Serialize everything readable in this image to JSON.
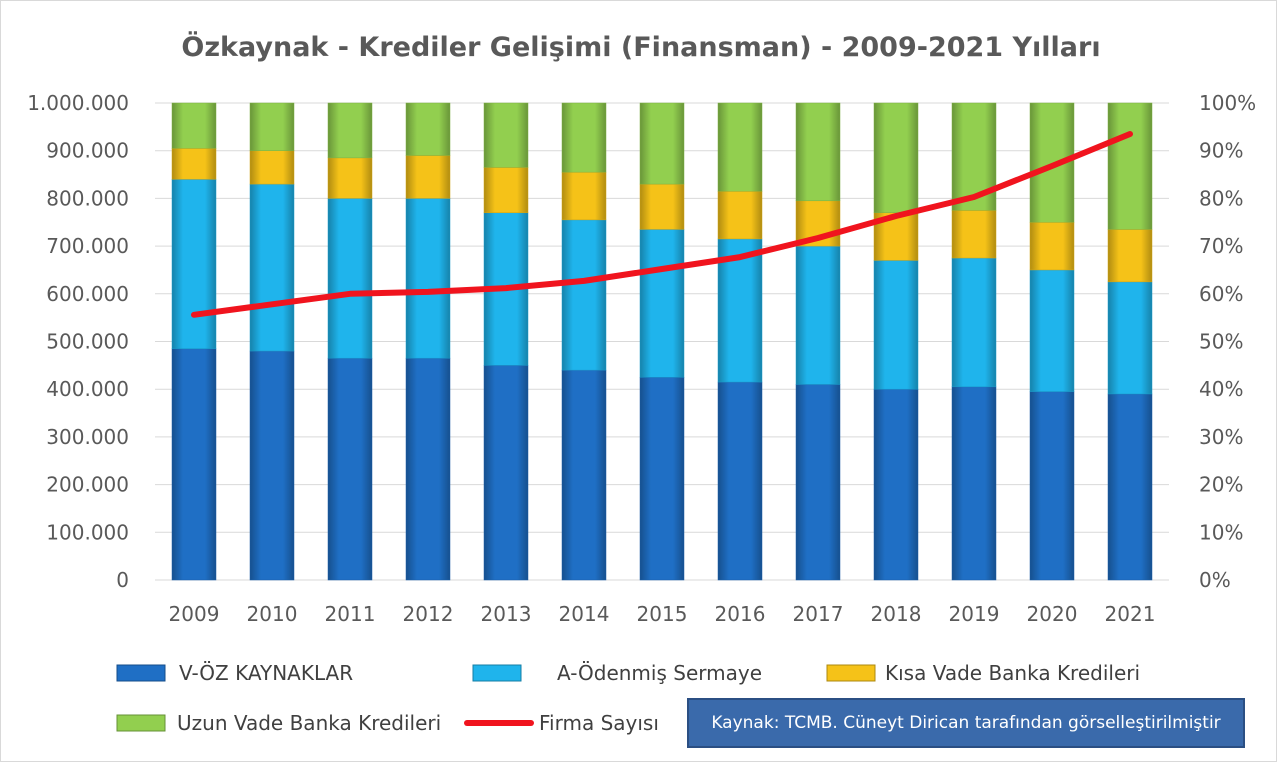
{
  "chart_data": {
    "type": "bar",
    "stacked": true,
    "title": "Özkaynak - Krediler Gelişimi (Finansman)  - 2009-2021 Yılları",
    "categories": [
      "2009",
      "2010",
      "2011",
      "2012",
      "2013",
      "2014",
      "2015",
      "2016",
      "2017",
      "2018",
      "2019",
      "2020",
      "2021"
    ],
    "y_left": {
      "range": [
        0,
        1000000
      ],
      "ticks": [
        "0",
        "100.000",
        "200.000",
        "300.000",
        "400.000",
        "500.000",
        "600.000",
        "700.000",
        "800.000",
        "900.000",
        "1.000.000"
      ]
    },
    "y_right": {
      "range": [
        0,
        100
      ],
      "unit": "%",
      "ticks": [
        "0%",
        "10%",
        "20%",
        "30%",
        "40%",
        "50%",
        "60%",
        "70%",
        "80%",
        "90%",
        "100%"
      ]
    },
    "grid": true,
    "legend_position": "bottom",
    "series": [
      {
        "name": "V-ÖZ KAYNAKLAR",
        "kind": "bar",
        "axis": "right",
        "color": "#1f6fc5",
        "values": [
          48.5,
          48,
          46.5,
          46.5,
          45,
          44,
          42.5,
          41.5,
          41,
          40,
          40.5,
          39.5,
          39
        ]
      },
      {
        "name": "A-Ödenmiş Sermaye",
        "kind": "bar",
        "axis": "right",
        "color": "#1fb4ec",
        "values": [
          35.5,
          35,
          33.5,
          33.5,
          32,
          31.5,
          31,
          30,
          29,
          27,
          27,
          25.5,
          23.5
        ]
      },
      {
        "name": "Kısa Vade Banka Kredileri",
        "kind": "bar",
        "axis": "right",
        "color": "#f5c218",
        "values": [
          6.5,
          7,
          8.5,
          9,
          9.5,
          10,
          9.5,
          10,
          9.5,
          10,
          10,
          10,
          11
        ]
      },
      {
        "name": "Uzun Vade Banka Kredileri",
        "kind": "bar",
        "axis": "right",
        "color": "#92cf4f",
        "values": [
          9.5,
          10,
          11.5,
          11,
          13.5,
          14.5,
          17,
          18.5,
          20.5,
          23,
          22.5,
          25,
          26.5
        ]
      },
      {
        "name": "Firma Sayısı",
        "kind": "line",
        "axis": "left",
        "color": "#f0141e",
        "values": [
          556000,
          578000,
          600000,
          604000,
          612000,
          627000,
          652000,
          677000,
          717000,
          763000,
          803000,
          868000,
          935000
        ]
      }
    ]
  },
  "legend": {
    "items": [
      {
        "label": "V-ÖZ KAYNAKLAR",
        "icon": "blue-bar-swatch",
        "color": "#1f6fc5"
      },
      {
        "label": "A-Ödenmiş Sermaye",
        "icon": "light-blue-bar-swatch",
        "color": "#1fb4ec"
      },
      {
        "label": "Kısa Vade Banka Kredileri",
        "icon": "yellow-bar-swatch",
        "color": "#f5c218"
      },
      {
        "label": "Uzun Vade Banka Kredileri",
        "icon": "green-bar-swatch",
        "color": "#92cf4f"
      },
      {
        "label": "Firma Sayısı",
        "icon": "red-line-swatch",
        "color": "#f0141e"
      }
    ]
  },
  "source_note": "Kaynak: TCMB. Cüneyt Dirican tarafından görselleştirilmiştir"
}
